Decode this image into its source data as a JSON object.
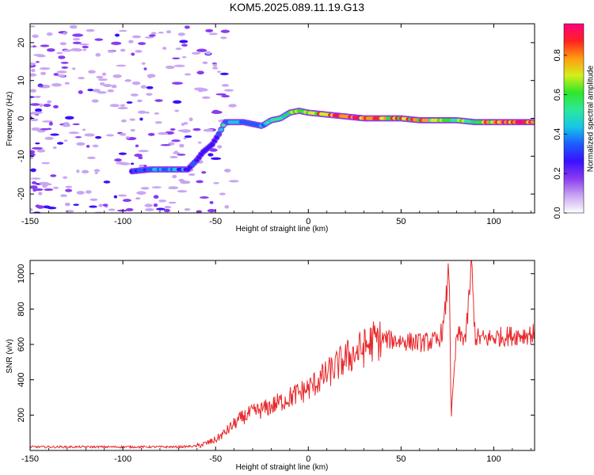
{
  "title": "KOM5.2025.089.11.19.G13",
  "colors": {
    "snr_line": "#e8282b",
    "colormap": [
      "#ffffff",
      "#c9a6f2",
      "#8a3cf0",
      "#3b10ff",
      "#1c5cff",
      "#16c6e8",
      "#2ce89a",
      "#2fe62a",
      "#d6ee1a",
      "#ff9a12",
      "#ff2222",
      "#ff0080"
    ]
  },
  "chart_data": [
    {
      "type": "heatmap",
      "name": "spectrogram",
      "xlabel": "Height of straight line (km)",
      "ylabel": "Frequency (Hz)",
      "xlim": [
        -150,
        122
      ],
      "ylim": [
        -25,
        25
      ],
      "xticks": [
        -150,
        -100,
        -50,
        0,
        50,
        100
      ],
      "yticks": [
        -20,
        -10,
        0,
        10,
        20
      ],
      "colorbar": {
        "label": "Normalized spectral amplitude",
        "range": [
          0,
          0.96
        ],
        "ticks": [
          0.0,
          0.2,
          0.4,
          0.6,
          0.8
        ]
      },
      "signal_track": {
        "x": [
          -95,
          -85,
          -75,
          -65,
          -60,
          -57,
          -52,
          -48,
          -45,
          -42,
          -38,
          -35,
          -30,
          -25,
          -20,
          -15,
          -10,
          -5,
          0,
          10,
          20,
          30,
          40,
          50,
          60,
          70,
          80,
          90,
          100,
          110,
          122
        ],
        "y": [
          -14,
          -13.5,
          -13.5,
          -13.5,
          -11,
          -9,
          -7,
          -4,
          -1,
          -1,
          -1,
          -1,
          -1.5,
          -2,
          -0.5,
          0,
          1.5,
          2,
          1.5,
          1,
          0.5,
          0,
          0,
          0,
          -0.5,
          -0.5,
          -0.5,
          -1,
          -1,
          -1,
          -1
        ],
        "amplitude": [
          0.3,
          0.4,
          0.4,
          0.35,
          0.3,
          0.3,
          0.25,
          0.3,
          0.5,
          0.45,
          0.4,
          0.35,
          0.35,
          0.4,
          0.5,
          0.55,
          0.6,
          0.7,
          0.75,
          0.85,
          0.95,
          0.9,
          0.75,
          0.8,
          0.75,
          0.6,
          0.65,
          0.6,
          0.85,
          0.9,
          0.8
        ]
      }
    },
    {
      "type": "line",
      "name": "snr",
      "xlabel": "Height of straight line (km)",
      "ylabel": "SNR (v/v)",
      "xlim": [
        -150,
        122
      ],
      "ylim": [
        0,
        1075
      ],
      "xticks": [
        -150,
        -100,
        -50,
        0,
        50,
        100
      ],
      "yticks": [
        200,
        400,
        600,
        800,
        1000
      ],
      "series_shape": {
        "x": [
          -150,
          -100,
          -70,
          -60,
          -55,
          -50,
          -45,
          -40,
          -35,
          -30,
          -25,
          -20,
          -10,
          0,
          10,
          20,
          30,
          35,
          40,
          50,
          60,
          70,
          73,
          76,
          77,
          80,
          85,
          88,
          90,
          95,
          100,
          110,
          122
        ],
        "y": [
          20,
          20,
          20,
          25,
          40,
          60,
          100,
          150,
          190,
          215,
          230,
          250,
          300,
          350,
          430,
          520,
          580,
          620,
          630,
          620,
          610,
          620,
          700,
          1060,
          180,
          650,
          640,
          1050,
          640,
          630,
          640,
          650,
          660
        ]
      }
    }
  ]
}
